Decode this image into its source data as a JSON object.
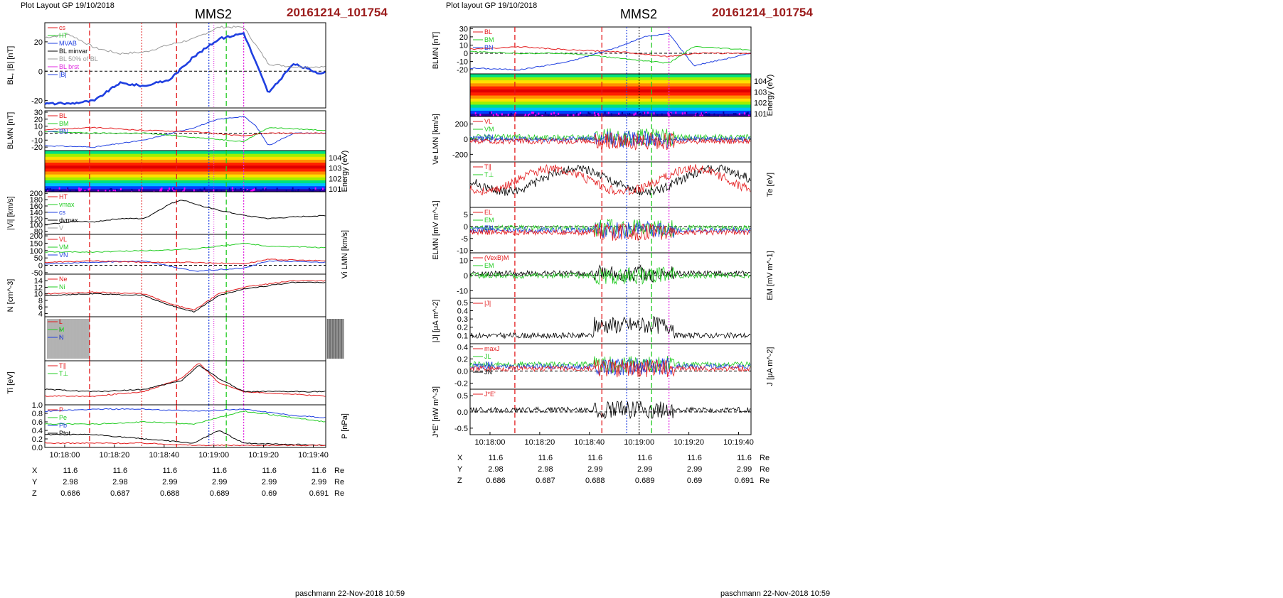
{
  "pages": [
    {
      "id": "left",
      "header_left": "Plot Layout GP 19/10/2018",
      "spacecraft": "MMS2",
      "event_id": "20161214_101754",
      "footer": "paschmann 22-Nov-2018 10:59",
      "time_ticks": [
        "10:18:00",
        "10:18:20",
        "10:18:40",
        "10:19:00",
        "10:19:20",
        "10:19:40"
      ],
      "orbit": {
        "rows": [
          {
            "label": "X",
            "values": [
              "11.6",
              "11.6",
              "11.6",
              "11.6",
              "11.6",
              "11.6"
            ],
            "unit": "Re"
          },
          {
            "label": "Y",
            "values": [
              "2.98",
              "2.98",
              "2.99",
              "2.99",
              "2.99",
              "2.99"
            ],
            "unit": "Re"
          },
          {
            "label": "Z",
            "values": [
              "0.686",
              "0.687",
              "0.688",
              "0.689",
              "0.69",
              "0.691"
            ],
            "unit": "Re"
          }
        ]
      }
    },
    {
      "id": "right",
      "header_left": "Plot layout GP 19/10/2018",
      "spacecraft": "MMS2",
      "event_id": "20161214_101754",
      "footer": "paschmann 22-Nov-2018 10:59",
      "time_ticks": [
        "10:18:00",
        "10:18:20",
        "10:18:40",
        "10:19:00",
        "10:19:20",
        "10:19:40"
      ],
      "orbit": {
        "rows": [
          {
            "label": "X",
            "values": [
              "11.6",
              "11.6",
              "11.6",
              "11.6",
              "11.6",
              "11.6"
            ],
            "unit": "Re"
          },
          {
            "label": "Y",
            "values": [
              "2.98",
              "2.98",
              "2.99",
              "2.99",
              "2.99",
              "2.99"
            ],
            "unit": "Re"
          },
          {
            "label": "Z",
            "values": [
              "0.686",
              "0.687",
              "0.688",
              "0.689",
              "0.69",
              "0.691"
            ],
            "unit": "Re"
          }
        ]
      }
    }
  ],
  "colors": {
    "blue": "#1f3fe0",
    "red": "#e31a1c",
    "green": "#22cc22",
    "black": "#000000",
    "gray": "#9a9a9a",
    "magenta": "#e028e0",
    "title_red": "#9b1b1b"
  },
  "chart_data": [
    {
      "page": "left",
      "type": "line",
      "x_range": [
        "10:17:52",
        "10:19:45"
      ],
      "vertical_markers": [
        {
          "time": "10:18:10",
          "style": "red-dashed"
        },
        {
          "time": "10:18:31",
          "style": "red-dotted"
        },
        {
          "time": "10:18:45",
          "style": "red-dashed"
        },
        {
          "time": "10:18:58",
          "style": "blue-dotted"
        },
        {
          "time": "10:19:00",
          "style": "magenta-dotted-thin"
        },
        {
          "time": "10:19:05",
          "style": "green-dashed"
        },
        {
          "time": "10:19:12",
          "style": "magenta-dotted"
        }
      ],
      "panels": [
        {
          "name": "bl",
          "ylabel": "BL, |B| [nT]",
          "yticks": [
            "20",
            "0",
            "-20"
          ],
          "ylim": [
            -25,
            33
          ],
          "legend": [
            "cs",
            "HT",
            "MVAB",
            "BL minvar",
            "BL 50% of BL",
            "BL brst",
            "|B|"
          ],
          "series": [
            {
              "name": "BL brst",
              "color": "blue",
              "t": [
                0,
                10,
                20,
                30,
                40,
                50,
                60,
                70,
                80,
                90,
                100,
                110,
                113
              ],
              "y": [
                -22,
                -22,
                -20,
                -8,
                -10,
                -6,
                10,
                22,
                26,
                -15,
                5,
                -1,
                -1
              ]
            },
            {
              "name": "|B|",
              "color": "gray",
              "t": [
                0,
                10,
                20,
                30,
                40,
                50,
                60,
                70,
                80,
                90,
                100,
                110,
                113
              ],
              "y": [
                23,
                25,
                16,
                12,
                13,
                18,
                22,
                30,
                30,
                5,
                3,
                3,
                3
              ]
            }
          ]
        },
        {
          "name": "blmn",
          "ylabel": "BLMN [nT]",
          "yticks": [
            "30",
            "20",
            "10",
            "0",
            "-10",
            "-20"
          ],
          "ylim": [
            -25,
            32
          ],
          "legend": [
            "BL",
            "BM",
            "BN"
          ],
          "series": [
            {
              "name": "BL",
              "color": "blue",
              "t": [
                0,
                20,
                40,
                60,
                70,
                80,
                85,
                90,
                100,
                113
              ],
              "y": [
                -18,
                -20,
                -10,
                8,
                20,
                24,
                10,
                -18,
                0,
                0
              ]
            },
            {
              "name": "BM",
              "color": "green",
              "t": [
                0,
                20,
                40,
                60,
                80,
                90,
                113
              ],
              "y": [
                2,
                0,
                0,
                -6,
                -12,
                8,
                4
              ]
            },
            {
              "name": "BN",
              "color": "red",
              "t": [
                0,
                20,
                40,
                60,
                80,
                90,
                113
              ],
              "y": [
                5,
                8,
                4,
                2,
                -4,
                0,
                0
              ]
            }
          ]
        },
        {
          "name": "spectro",
          "ylabel": "Energy (eV)",
          "yticks": [
            "10^4",
            "10^3",
            "10^2",
            "10^1"
          ]
        },
        {
          "name": "vi",
          "ylabel": "|Vi| [km/s]",
          "yticks": [
            "200",
            "180",
            "160",
            "140",
            "120",
            "100",
            "80"
          ],
          "ylim": [
            70,
            205
          ],
          "legend": [
            "HT",
            "vmax",
            "cs",
            "dvmax",
            "V"
          ],
          "series": [
            {
              "name": "|Vi|",
              "color": "black",
              "t": [
                0,
                10,
                20,
                30,
                40,
                50,
                55,
                65,
                80,
                90,
                100,
                113
              ],
              "y": [
                100,
                110,
                110,
                120,
                120,
                165,
                180,
                155,
                130,
                120,
                125,
                130
              ]
            }
          ]
        },
        {
          "name": "vilmn",
          "ylabel": "Vi LMN [km/s]",
          "yticks": [
            "200",
            "150",
            "100",
            "50",
            "0",
            "-50"
          ],
          "ylim": [
            -60,
            210
          ],
          "legend": [
            "VL",
            "VM",
            "VN"
          ],
          "series": [
            {
              "name": "VL",
              "color": "blue",
              "t": [
                0,
                20,
                40,
                60,
                80,
                90,
                113
              ],
              "y": [
                10,
                20,
                30,
                -40,
                -20,
                30,
                20
              ]
            },
            {
              "name": "VM",
              "color": "green",
              "t": [
                0,
                20,
                40,
                60,
                80,
                90,
                113
              ],
              "y": [
                90,
                90,
                100,
                110,
                150,
                130,
                120
              ]
            },
            {
              "name": "VN",
              "color": "red",
              "t": [
                0,
                20,
                40,
                60,
                80,
                90,
                113
              ],
              "y": [
                20,
                30,
                20,
                20,
                10,
                40,
                30
              ]
            }
          ]
        },
        {
          "name": "n",
          "ylabel": "N [cm^-3]",
          "yticks": [
            "14",
            "12",
            "10",
            "8",
            "6",
            "4"
          ],
          "ylim": [
            3,
            16
          ],
          "legend": [
            "Ne",
            "Ni"
          ],
          "series": [
            {
              "name": "Ne",
              "color": "red",
              "t": [
                0,
                20,
                40,
                50,
                60,
                70,
                80,
                90,
                100,
                113
              ],
              "y": [
                10,
                10.5,
                10,
                7,
                5,
                10,
                12,
                13,
                14,
                14
              ]
            },
            {
              "name": "Ni",
              "color": "black",
              "t": [
                0,
                20,
                40,
                50,
                60,
                70,
                80,
                90,
                100,
                113
              ],
              "y": [
                9.5,
                10,
                9.5,
                6.5,
                4.5,
                9.5,
                11.5,
                12.5,
                13.5,
                13.5
              ]
            }
          ]
        },
        {
          "name": "dots",
          "legend": [
            "L",
            "M",
            "N"
          ]
        },
        {
          "name": "ti",
          "ylabel": "Ti [eV]",
          "legend": [
            "T∥",
            "T⊥"
          ],
          "series": [
            {
              "name": "T∥",
              "color": "red",
              "t": [
                0,
                20,
                40,
                55,
                62,
                70,
                80,
                113
              ],
              "y": [
                0.2,
                0.2,
                0.3,
                0.6,
                0.95,
                0.5,
                0.3,
                0.2
              ]
            },
            {
              "name": "T⊥",
              "color": "black",
              "t": [
                0,
                20,
                40,
                55,
                62,
                70,
                80,
                113
              ],
              "y": [
                0.35,
                0.3,
                0.35,
                0.55,
                0.9,
                0.6,
                0.3,
                0.3
              ]
            }
          ]
        },
        {
          "name": "p",
          "ylabel": "P [nPa]",
          "yticks": [
            "1.0",
            "0.8",
            "0.6",
            "0.4",
            "0.2",
            "0.0"
          ],
          "ylim": [
            0,
            1.0
          ],
          "legend": [
            "P",
            "Pe",
            "Pb",
            "Ptot"
          ],
          "series": [
            {
              "name": "Ptot",
              "color": "blue",
              "t": [
                0,
                20,
                40,
                60,
                80,
                100,
                113
              ],
              "y": [
                0.85,
                0.9,
                0.9,
                0.85,
                0.9,
                0.75,
                0.7
              ]
            },
            {
              "name": "P",
              "color": "green",
              "t": [
                0,
                20,
                40,
                60,
                80,
                100,
                113
              ],
              "y": [
                0.55,
                0.55,
                0.6,
                0.55,
                0.85,
                0.7,
                0.6
              ]
            },
            {
              "name": "Pb",
              "color": "black",
              "t": [
                0,
                20,
                40,
                60,
                70,
                80,
                113
              ],
              "y": [
                0.3,
                0.3,
                0.2,
                0.1,
                0.4,
                0.1,
                0.05
              ]
            },
            {
              "name": "Pe",
              "color": "red",
              "t": [
                0,
                40,
                60,
                80,
                113
              ],
              "y": [
                0.1,
                0.1,
                0.05,
                0.05,
                0.05
              ]
            }
          ]
        }
      ]
    },
    {
      "page": "right",
      "type": "line",
      "x_range": [
        "10:17:52",
        "10:19:45"
      ],
      "vertical_markers": [
        {
          "time": "10:18:10",
          "style": "red-dashed"
        },
        {
          "time": "10:18:45",
          "style": "red-dashed"
        },
        {
          "time": "10:18:55",
          "style": "blue-dotted"
        },
        {
          "time": "10:19:00",
          "style": "black-dotted"
        },
        {
          "time": "10:19:05",
          "style": "green-dashed"
        },
        {
          "time": "10:19:12",
          "style": "magenta-dotted"
        }
      ],
      "panels": [
        {
          "name": "blmn",
          "ylabel": "BLMN [nT]",
          "yticks": [
            "30",
            "20",
            "10",
            "0",
            "-10",
            "-20"
          ],
          "ylim": [
            -25,
            32
          ],
          "legend": [
            "BL",
            "BM",
            "BN"
          ],
          "series": [
            {
              "name": "BL",
              "color": "blue",
              "t": [
                0,
                20,
                40,
                60,
                70,
                80,
                90,
                113
              ],
              "y": [
                -18,
                -20,
                -10,
                8,
                20,
                24,
                -15,
                0
              ]
            },
            {
              "name": "BM",
              "color": "green",
              "t": [
                0,
                20,
                40,
                60,
                80,
                90,
                113
              ],
              "y": [
                2,
                0,
                0,
                -6,
                -12,
                8,
                4
              ]
            },
            {
              "name": "BN",
              "color": "red",
              "t": [
                0,
                20,
                40,
                60,
                80,
                90,
                113
              ],
              "y": [
                5,
                8,
                4,
                2,
                -4,
                0,
                0
              ]
            }
          ]
        },
        {
          "name": "spectro",
          "ylabel": "Energy (eV)",
          "yticks": [
            "10^4",
            "10^3",
            "10^2",
            "10^1"
          ]
        },
        {
          "name": "ve",
          "ylabel": "Ve LMN [km/s]",
          "yticks": [
            "200",
            "0",
            "-200"
          ],
          "ylim": [
            -300,
            300
          ],
          "legend": [
            "VL",
            "VM",
            "VN"
          ]
        },
        {
          "name": "te",
          "ylabel": "Te [eV]",
          "legend": [
            "T∥",
            "T⊥"
          ]
        },
        {
          "name": "e",
          "ylabel": "ELMN [mV m^-1]",
          "yticks": [
            "5",
            "0",
            "-5",
            "-10"
          ],
          "ylim": [
            -11,
            8
          ],
          "legend": [
            "EL",
            "EM",
            "EN"
          ]
        },
        {
          "name": "em",
          "ylabel": "EM [mV m^-1]",
          "yticks": [
            "10",
            "0",
            "-10"
          ],
          "ylim": [
            -15,
            15
          ],
          "legend": [
            "(VexB)M",
            "EM"
          ]
        },
        {
          "name": "j",
          "ylabel": "|J| [μA m^-2]",
          "yticks": [
            "0.5",
            "0.4",
            "0.3",
            "0.2",
            "0.1"
          ],
          "ylim": [
            0,
            0.55
          ],
          "legend": [
            "|J|"
          ]
        },
        {
          "name": "jlmn",
          "ylabel": "J [μA m^-2]",
          "yticks": [
            "0.4",
            "0.2",
            "0.0",
            "-0.2"
          ],
          "ylim": [
            -0.3,
            0.45
          ],
          "legend": [
            "maxJ",
            "JL",
            "JM",
            "JN"
          ]
        },
        {
          "name": "jdote",
          "ylabel": "J*E' [nW m^-3]",
          "yticks": [
            "0.5",
            "0.0",
            "-0.5"
          ],
          "ylim": [
            -0.7,
            0.7
          ],
          "legend": [
            "J*E'"
          ]
        }
      ]
    }
  ]
}
